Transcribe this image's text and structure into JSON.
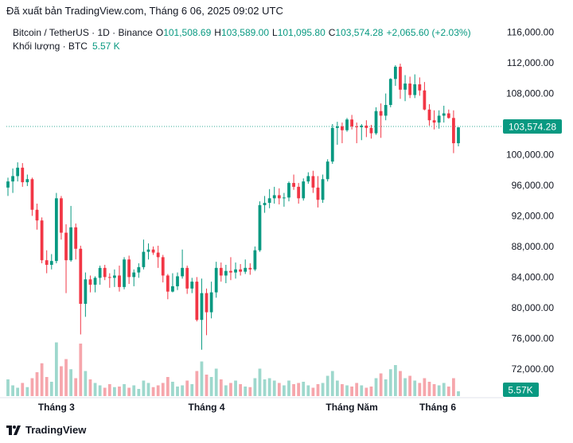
{
  "header": {
    "published_text": "Đã xuất bản TradingView.com, Tháng 6 06, 2025 09:02 UTC"
  },
  "legend": {
    "symbol": "Bitcoin / TetherUS · 1D · Binance",
    "open_label": "O",
    "open": "101,508.69",
    "high_label": "H",
    "high": "103,589.00",
    "low_label": "L",
    "low": "101,095.80",
    "close_label": "C",
    "close": "103,574.28",
    "change": "+2,065.60 (+2.03%)",
    "volume_label": "Khối lượng · BTC",
    "volume": "5.57 K"
  },
  "price_axis": {
    "ticks": [
      "116,000.00",
      "112,000.00",
      "108,000.00",
      "104,000.00",
      "100,000.00",
      "96,000.00",
      "92,000.00",
      "88,000.00",
      "84,000.00",
      "80,000.00",
      "76,000.00",
      "72,000.00"
    ],
    "last_price_label": "103,574.28",
    "volume_label": "5.57K"
  },
  "time_axis": {
    "labels": [
      "Tháng 3",
      "Tháng 4",
      "Tháng Năm",
      "Tháng 6"
    ]
  },
  "footer": {
    "brand": "TradingView",
    "logo": "tradingview-logo-icon"
  },
  "colors": {
    "up": "#089981",
    "down": "#f23645",
    "up_volume": "#9ed8cd",
    "down_volume": "#f6a6ac"
  },
  "chart_data": {
    "type": "candlestick",
    "title": "Bitcoin / TetherUS · 1D · Binance",
    "ylim": [
      70000,
      117000
    ],
    "grid": false,
    "candles_ohlc": [
      [
        95700,
        97000,
        94600,
        96500
      ],
      [
        96500,
        98200,
        95000,
        97200
      ],
      [
        97200,
        99000,
        96500,
        98300
      ],
      [
        98300,
        98900,
        95800,
        96400
      ],
      [
        96400,
        97400,
        95900,
        96800
      ],
      [
        96800,
        97000,
        92000,
        92800
      ],
      [
        92800,
        93600,
        90200,
        91400
      ],
      [
        91400,
        91800,
        85800,
        86200
      ],
      [
        86200,
        87500,
        84500,
        85600
      ],
      [
        85600,
        87000,
        85000,
        86100
      ],
      [
        86100,
        95000,
        85800,
        94300
      ],
      [
        94300,
        94600,
        88900,
        89800
      ],
      [
        89800,
        90900,
        81900,
        86200
      ],
      [
        86200,
        93300,
        86000,
        90500
      ],
      [
        90500,
        91000,
        86300,
        87700
      ],
      [
        87700,
        88100,
        76500,
        80500
      ],
      [
        80500,
        84600,
        78800,
        83700
      ],
      [
        83700,
        84200,
        82000,
        83000
      ],
      [
        83000,
        84100,
        82000,
        83900
      ],
      [
        83900,
        85500,
        83000,
        85200
      ],
      [
        85200,
        85600,
        83600,
        84000
      ],
      [
        84000,
        84500,
        82600,
        83900
      ],
      [
        83900,
        85000,
        82700,
        84200
      ],
      [
        84200,
        85500,
        82100,
        82700
      ],
      [
        82700,
        86600,
        82400,
        86300
      ],
      [
        86300,
        86800,
        83100,
        84000
      ],
      [
        84000,
        85000,
        82800,
        84600
      ],
      [
        84600,
        85800,
        83900,
        85300
      ],
      [
        85300,
        88900,
        85000,
        87300
      ],
      [
        87300,
        88400,
        86300,
        87600
      ],
      [
        87600,
        88000,
        86900,
        87200
      ],
      [
        87200,
        88100,
        85200,
        86600
      ],
      [
        86600,
        86900,
        83300,
        84200
      ],
      [
        84200,
        84400,
        81100,
        82100
      ],
      [
        82100,
        84500,
        82000,
        82800
      ],
      [
        82800,
        84600,
        82300,
        84100
      ],
      [
        84100,
        87600,
        83800,
        85200
      ],
      [
        85200,
        85500,
        81800,
        82500
      ],
      [
        82500,
        83900,
        81900,
        83400
      ],
      [
        83400,
        84000,
        78200,
        78400
      ],
      [
        78400,
        83800,
        74500,
        81900
      ],
      [
        81900,
        82500,
        76400,
        79400
      ],
      [
        79400,
        83400,
        78600,
        82000
      ],
      [
        82000,
        86000,
        81300,
        85200
      ],
      [
        85200,
        85900,
        83400,
        84200
      ],
      [
        84200,
        85600,
        83200,
        84800
      ],
      [
        84800,
        86600,
        83600,
        84600
      ],
      [
        84600,
        85900,
        83800,
        85000
      ],
      [
        85000,
        85700,
        84200,
        84700
      ],
      [
        84700,
        86300,
        84400,
        85200
      ],
      [
        85200,
        85800,
        84300,
        85000
      ],
      [
        85000,
        88000,
        84800,
        87500
      ],
      [
        87500,
        93900,
        87300,
        93400
      ],
      [
        93400,
        94600,
        92400,
        93700
      ],
      [
        93700,
        95500,
        93000,
        94300
      ],
      [
        94300,
        95800,
        93600,
        94700
      ],
      [
        94700,
        95600,
        93500,
        94300
      ],
      [
        94300,
        95000,
        93200,
        94400
      ],
      [
        94400,
        96500,
        93900,
        96300
      ],
      [
        96300,
        97400,
        95400,
        95800
      ],
      [
        95800,
        96300,
        93600,
        94300
      ],
      [
        94300,
        96900,
        94000,
        96500
      ],
      [
        96500,
        97700,
        96200,
        97200
      ],
      [
        97200,
        97900,
        95000,
        95700
      ],
      [
        95700,
        97200,
        93100,
        94100
      ],
      [
        94100,
        97400,
        93700,
        96800
      ],
      [
        96800,
        99400,
        96500,
        99100
      ],
      [
        99100,
        104000,
        98800,
        103500
      ],
      [
        103500,
        104300,
        101300,
        103700
      ],
      [
        103700,
        104200,
        101500,
        103200
      ],
      [
        103200,
        104800,
        103000,
        104600
      ],
      [
        104600,
        105200,
        103300,
        103700
      ],
      [
        103700,
        104200,
        101500,
        103600
      ],
      [
        103600,
        104000,
        101900,
        103800
      ],
      [
        103800,
        104500,
        102300,
        103500
      ],
      [
        103500,
        103900,
        102100,
        102800
      ],
      [
        102800,
        106200,
        102600,
        105700
      ],
      [
        105700,
        106700,
        102200,
        105100
      ],
      [
        105100,
        108000,
        104500,
        106500
      ],
      [
        106500,
        110000,
        106200,
        109900
      ],
      [
        109900,
        111700,
        109000,
        111500
      ],
      [
        111500,
        111900,
        107300,
        108500
      ],
      [
        108500,
        110400,
        107000,
        109300
      ],
      [
        109300,
        110200,
        107400,
        107800
      ],
      [
        107800,
        110500,
        107400,
        109200
      ],
      [
        109200,
        110100,
        107700,
        108400
      ],
      [
        108400,
        109500,
        105800,
        105900
      ],
      [
        105900,
        106600,
        103800,
        104500
      ],
      [
        104500,
        105800,
        103300,
        104200
      ],
      [
        104200,
        105800,
        103400,
        105100
      ],
      [
        105100,
        106400,
        104200,
        105400
      ],
      [
        105400,
        105900,
        104700,
        104800
      ],
      [
        104800,
        105800,
        100200,
        101500
      ],
      [
        101500,
        103589,
        101096,
        103574
      ]
    ],
    "volume_levels": [
      0.28,
      0.18,
      0.14,
      0.22,
      0.15,
      0.3,
      0.4,
      0.55,
      0.32,
      0.24,
      0.9,
      0.5,
      0.62,
      0.45,
      0.3,
      0.88,
      0.42,
      0.28,
      0.22,
      0.18,
      0.14,
      0.2,
      0.15,
      0.16,
      0.2,
      0.14,
      0.18,
      0.12,
      0.26,
      0.22,
      0.15,
      0.18,
      0.22,
      0.32,
      0.24,
      0.16,
      0.18,
      0.26,
      0.2,
      0.42,
      0.58,
      0.36,
      0.32,
      0.46,
      0.28,
      0.18,
      0.22,
      0.26,
      0.2,
      0.16,
      0.15,
      0.3,
      0.46,
      0.28,
      0.3,
      0.26,
      0.22,
      0.18,
      0.26,
      0.2,
      0.22,
      0.24,
      0.18,
      0.14,
      0.2,
      0.22,
      0.34,
      0.42,
      0.26,
      0.2,
      0.18,
      0.16,
      0.22,
      0.18,
      0.14,
      0.16,
      0.3,
      0.38,
      0.28,
      0.45,
      0.52,
      0.42,
      0.3,
      0.34,
      0.26,
      0.22,
      0.3,
      0.24,
      0.2,
      0.18,
      0.22,
      0.16,
      0.3,
      0.08
    ]
  }
}
